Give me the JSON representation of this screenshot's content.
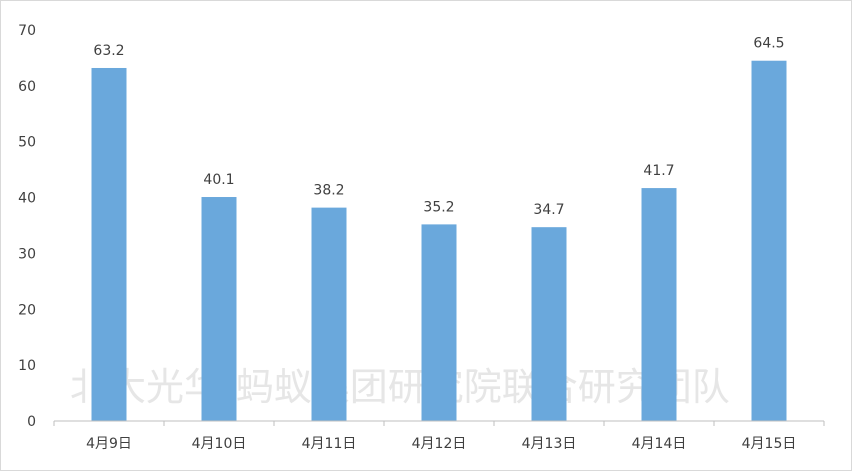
{
  "chart_data": {
    "type": "bar",
    "categories": [
      "4月9日",
      "4月10日",
      "4月11日",
      "4月12日",
      "4月13日",
      "4月14日",
      "4月15日"
    ],
    "values": [
      63.2,
      40.1,
      38.2,
      35.2,
      34.7,
      41.7,
      64.5
    ],
    "data_labels": [
      "63.2",
      "40.1",
      "38.2",
      "35.2",
      "34.7",
      "41.7",
      "64.5"
    ],
    "title": "",
    "xlabel": "",
    "ylabel": "",
    "ylim": [
      0,
      70
    ],
    "yticks": [
      "0",
      "10",
      "20",
      "30",
      "40",
      "50",
      "60",
      "70"
    ],
    "grid": false,
    "legend": "none",
    "bar_color": "#6aa8dc",
    "watermark": "北大光华-蚂蚁集团研究院联合研究团队"
  }
}
